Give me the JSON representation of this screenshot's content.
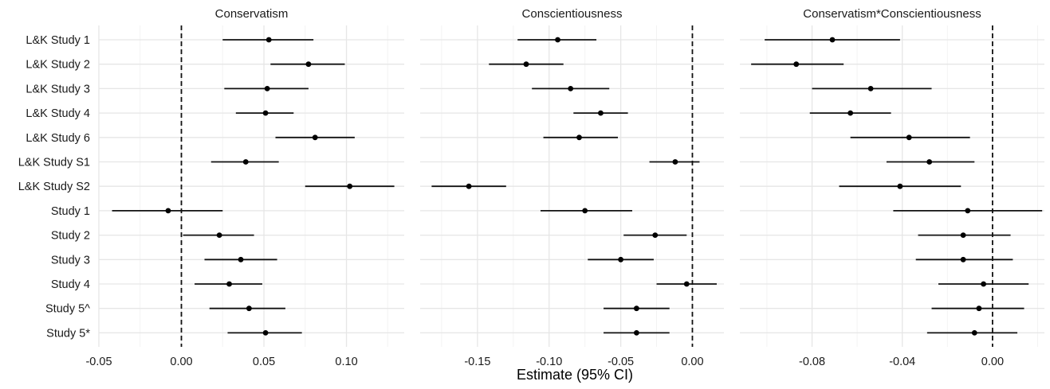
{
  "chart_data": {
    "type": "forest",
    "xlabel": "Estimate (95% CI)",
    "studies": [
      "L&K Study 1",
      "L&K Study 2",
      "L&K Study 3",
      "L&K Study 4",
      "L&K Study 6",
      "L&K Study S1",
      "L&K Study S2",
      "Study 1",
      "Study 2",
      "Study 3",
      "Study 4",
      "Study 5^",
      "Study 5*"
    ],
    "panels": [
      {
        "title": "Conservatism",
        "xlim": [
          -0.05,
          0.135
        ],
        "ticks": [
          -0.05,
          0.0,
          0.05,
          0.1
        ],
        "tick_labels": [
          "-0.05",
          "0.00",
          "0.05",
          "0.10"
        ],
        "minor_ticks": [
          -0.025,
          0.025,
          0.075,
          0.125
        ],
        "reference_line": 0,
        "estimates": [
          0.053,
          0.077,
          0.052,
          0.051,
          0.081,
          0.039,
          0.102,
          -0.008,
          0.023,
          0.036,
          0.029,
          0.041,
          0.051
        ],
        "lower": [
          0.025,
          0.054,
          0.026,
          0.033,
          0.057,
          0.018,
          0.075,
          -0.042,
          0.001,
          0.014,
          0.008,
          0.017,
          0.028
        ],
        "upper": [
          0.08,
          0.099,
          0.077,
          0.068,
          0.105,
          0.059,
          0.129,
          0.025,
          0.044,
          0.058,
          0.049,
          0.063,
          0.073
        ]
      },
      {
        "title": "Conscientiousness",
        "xlim": [
          -0.19,
          0.022
        ],
        "ticks": [
          -0.15,
          -0.1,
          -0.05,
          0.0
        ],
        "tick_labels": [
          "-0.15",
          "-0.10",
          "-0.05",
          "0.00"
        ],
        "minor_ticks": [
          -0.175,
          -0.125,
          -0.075,
          -0.025
        ],
        "reference_line": 0,
        "estimates": [
          -0.094,
          -0.116,
          -0.085,
          -0.064,
          -0.079,
          -0.012,
          -0.156,
          -0.075,
          -0.026,
          -0.05,
          -0.004,
          -0.039,
          -0.039
        ],
        "lower": [
          -0.122,
          -0.142,
          -0.112,
          -0.083,
          -0.104,
          -0.03,
          -0.182,
          -0.106,
          -0.048,
          -0.073,
          -0.025,
          -0.062,
          -0.062
        ],
        "upper": [
          -0.067,
          -0.09,
          -0.058,
          -0.045,
          -0.052,
          0.005,
          -0.13,
          -0.042,
          -0.004,
          -0.027,
          0.017,
          -0.016,
          -0.016
        ]
      },
      {
        "title": "Conservatism*Conscientiousness",
        "xlim": [
          -0.112,
          0.023
        ],
        "ticks": [
          -0.08,
          -0.04,
          0.0
        ],
        "tick_labels": [
          "-0.08",
          "-0.04",
          "0.00"
        ],
        "minor_ticks": [
          -0.1,
          -0.06,
          -0.02,
          0.02
        ],
        "reference_line": 0,
        "estimates": [
          -0.071,
          -0.087,
          -0.054,
          -0.063,
          -0.037,
          -0.028,
          -0.041,
          -0.011,
          -0.013,
          -0.013,
          -0.004,
          -0.006,
          -0.008
        ],
        "lower": [
          -0.101,
          -0.107,
          -0.08,
          -0.081,
          -0.063,
          -0.047,
          -0.068,
          -0.044,
          -0.033,
          -0.034,
          -0.024,
          -0.027,
          -0.029
        ],
        "upper": [
          -0.041,
          -0.066,
          -0.027,
          -0.045,
          -0.01,
          -0.008,
          -0.014,
          0.022,
          0.008,
          0.009,
          0.016,
          0.014,
          0.011
        ]
      }
    ]
  }
}
